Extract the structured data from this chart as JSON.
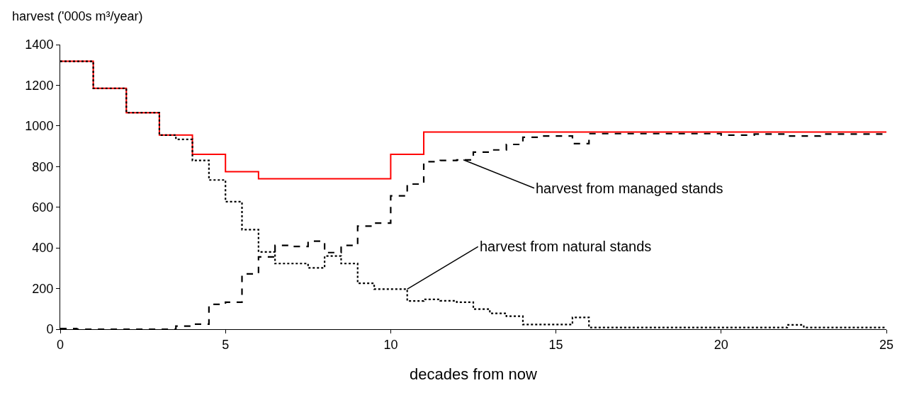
{
  "chart_data": {
    "type": "step",
    "xlabel": "decades from now",
    "ylabel": "harvest ('000s m³/year)",
    "xlim": [
      0,
      25
    ],
    "xticks": [
      0,
      5,
      10,
      15,
      20,
      25
    ],
    "ylim": [
      0,
      1400
    ],
    "yticks": [
      0,
      200,
      400,
      600,
      800,
      1000,
      1200,
      1400
    ],
    "marker": "none",
    "series": [
      {
        "color": "#ff0000",
        "line_style": "solid",
        "x": [
          0,
          1,
          2,
          3,
          4,
          5,
          6,
          7,
          8,
          9,
          10,
          11,
          25
        ],
        "values": [
          1318,
          1185,
          1065,
          955,
          860,
          775,
          740,
          740,
          740,
          740,
          860,
          970,
          970
        ]
      },
      {
        "color": "#000000",
        "line_style": "dashed",
        "x": [
          0,
          0.5,
          1,
          1.5,
          2,
          2.5,
          3,
          3.5,
          4,
          4.5,
          5,
          5.5,
          6,
          6.5,
          7,
          7.5,
          8,
          8.5,
          9,
          9.5,
          10,
          10.5,
          11,
          11.5,
          12,
          12.5,
          13,
          13.5,
          14,
          14.5,
          15,
          15.5,
          16,
          16.5,
          17,
          17.5,
          18,
          18.5,
          19,
          19.5,
          20,
          20.5,
          21,
          21.5,
          22,
          22.5,
          23,
          23.5,
          24,
          24.5,
          25
        ],
        "values": [
          3,
          0,
          0,
          0,
          0,
          0,
          0,
          15,
          25,
          122,
          133,
          272,
          356,
          412,
          407,
          433,
          377,
          412,
          507,
          522,
          656,
          714,
          824,
          830,
          833,
          871,
          882,
          909,
          944,
          950,
          950,
          913,
          962,
          962,
          962,
          962,
          962,
          962,
          962,
          962,
          955,
          955,
          960,
          960,
          950,
          950,
          960,
          960,
          960,
          960,
          960
        ]
      },
      {
        "color": "#000000",
        "line_style": "dotted",
        "x": [
          0,
          0.5,
          1,
          1.5,
          2,
          2.5,
          3,
          3.5,
          4,
          4.5,
          5,
          5.5,
          6,
          6.5,
          7,
          7.5,
          8,
          8.5,
          9,
          9.5,
          10,
          10.5,
          11,
          11.5,
          12,
          12.5,
          13,
          13.5,
          14,
          14.5,
          15,
          15.5,
          16,
          16.5,
          17,
          17.5,
          18,
          18.5,
          19,
          19.5,
          20,
          20.5,
          21,
          21.5,
          22,
          22.5,
          23,
          23.5,
          24,
          24.5,
          25
        ],
        "values": [
          1318,
          1318,
          1185,
          1185,
          1065,
          1065,
          955,
          934,
          830,
          734,
          627,
          490,
          380,
          323,
          323,
          302,
          360,
          323,
          226,
          197,
          197,
          139,
          147,
          140,
          133,
          99,
          78,
          64,
          23,
          23,
          23,
          58,
          8,
          8,
          8,
          8,
          8,
          8,
          8,
          8,
          8,
          8,
          8,
          8,
          21,
          8,
          8,
          8,
          8,
          8,
          8
        ]
      }
    ],
    "annotations": [
      {
        "text": "harvest from managed stands",
        "x": 12.2,
        "y": 833
      },
      {
        "text": "harvest from natural stands",
        "x": 10.5,
        "y": 197
      }
    ]
  }
}
